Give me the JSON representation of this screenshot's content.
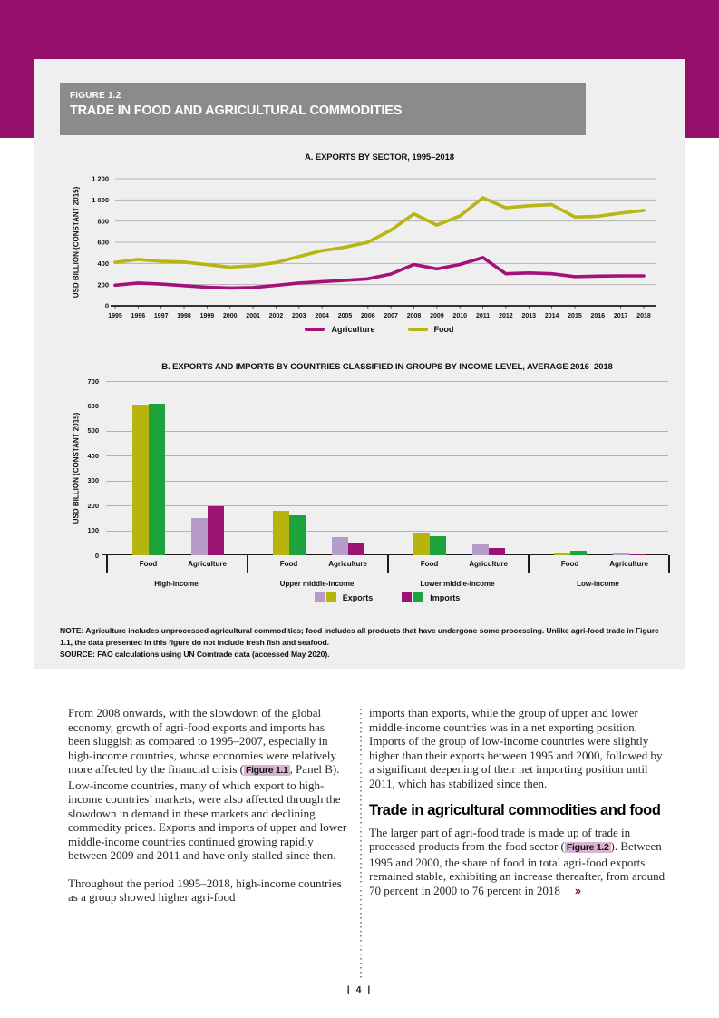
{
  "page": {
    "number": "| 4 |"
  },
  "figure": {
    "label": "FIGURE 1.2",
    "title": "TRADE IN FOOD AND AGRICULTURAL COMMODITIES",
    "note": "NOTE: Agriculture includes unprocessed agricultural commodities; food includes all products that have undergone some processing. Unlike agri-food trade in Figure 1.1, the data presented in this figure do not include fresh fish and seafood.",
    "source": "SOURCE: FAO calculations using UN Comtrade data (accessed May 2020)."
  },
  "colors": {
    "brand": "#96106b",
    "header_gray": "#8b8b8b",
    "panel_gray": "#efefef",
    "line_agriculture": "#a5107a",
    "line_food": "#b9b512",
    "bar_food_exports": "#b8b40e",
    "bar_food_imports": "#1ea33c",
    "bar_agri_exports": "#b79cc9",
    "bar_agri_imports": "#9c1472",
    "figure_ref_bg": "#d9b3d4",
    "accent": "#97106a"
  },
  "chart_data": [
    {
      "type": "line",
      "title": "A. EXPORTS BY SECTOR, 1995–2018",
      "ylabel": "USD BILLION (CONSTANT 2015)",
      "ylim": [
        0,
        1200
      ],
      "ytick_step": 200,
      "grid": true,
      "legend_position": "bottom",
      "x": [
        1995,
        1996,
        1997,
        1998,
        1999,
        2000,
        2001,
        2002,
        2003,
        2004,
        2005,
        2006,
        2007,
        2008,
        2009,
        2010,
        2011,
        2012,
        2013,
        2014,
        2015,
        2016,
        2017,
        2018
      ],
      "series": [
        {
          "name": "Agriculture",
          "color_key": "line_agriculture",
          "values": [
            195,
            215,
            205,
            190,
            175,
            168,
            172,
            193,
            215,
            228,
            240,
            255,
            300,
            390,
            348,
            390,
            455,
            303,
            310,
            303,
            275,
            280,
            283,
            283
          ]
        },
        {
          "name": "Food",
          "color_key": "line_food",
          "values": [
            410,
            438,
            420,
            413,
            388,
            365,
            378,
            408,
            465,
            520,
            553,
            600,
            715,
            868,
            762,
            848,
            1020,
            925,
            945,
            955,
            838,
            845,
            875,
            900
          ]
        }
      ]
    },
    {
      "type": "bar",
      "title": "B. EXPORTS AND IMPORTS BY COUNTRIES CLASSIFIED IN GROUPS BY INCOME LEVEL, AVERAGE 2016–2018",
      "ylabel": "USD BILLION (CONSTANT 2015)",
      "ylim": [
        0,
        700
      ],
      "ytick_step": 100,
      "grid": true,
      "legend": [
        "Exports",
        "Imports"
      ],
      "legend_position": "bottom",
      "groups": [
        {
          "income": "High-income",
          "sectors": [
            {
              "sector": "Food",
              "exports": 605,
              "imports": 608
            },
            {
              "sector": "Agriculture",
              "exports": 148,
              "imports": 198
            }
          ]
        },
        {
          "income": "Upper middle-income",
          "sectors": [
            {
              "sector": "Food",
              "exports": 178,
              "imports": 162
            },
            {
              "sector": "Agriculture",
              "exports": 73,
              "imports": 53
            }
          ]
        },
        {
          "income": "Lower middle-income",
          "sectors": [
            {
              "sector": "Food",
              "exports": 88,
              "imports": 77
            },
            {
              "sector": "Agriculture",
              "exports": 45,
              "imports": 30
            }
          ]
        },
        {
          "income": "Low-income",
          "sectors": [
            {
              "sector": "Food",
              "exports": 6,
              "imports": 19
            },
            {
              "sector": "Agriculture",
              "exports": 8,
              "imports": 5
            }
          ]
        }
      ]
    }
  ],
  "body": {
    "left": {
      "p1_pre": "From 2008 onwards, with the slowdown of the global economy, growth of agri-food exports and imports has been sluggish as compared to 1995–2007, especially in high-income countries, whose economies were relatively more affected by the financial crisis (",
      "p1_ref": "Figure 1.1",
      "p1_post": ", Panel B). Low-income countries, many of which export to high-income countries’ markets, were also affected through the slowdown in demand in these markets and declining commodity prices. Exports and imports of upper and lower middle-income countries continued growing rapidly between 2009 and 2011 and have only stalled since then.",
      "p2": "Throughout the period 1995–2018, high-income countries as a group showed higher agri-food"
    },
    "right": {
      "p1": "imports than exports, while the group of upper and lower middle-income countries was in a net exporting position. Imports of the group of low-income countries were slightly higher than their exports between 1995 and 2000, followed by a significant deepening of their net importing position until 2011, which has stabilized since then.",
      "heading": "Trade in agricultural commodities and food",
      "p2_pre": "The larger part of agri-food trade is made up of trade in processed products from the food sector (",
      "p2_ref": "Figure 1.2",
      "p2_post": "). Between 1995 and 2000, the share of food in total agri-food exports remained stable, exhibiting an increase thereafter, from around 70 percent in 2000 to 76 percent in 2018",
      "continuation": "»"
    }
  }
}
